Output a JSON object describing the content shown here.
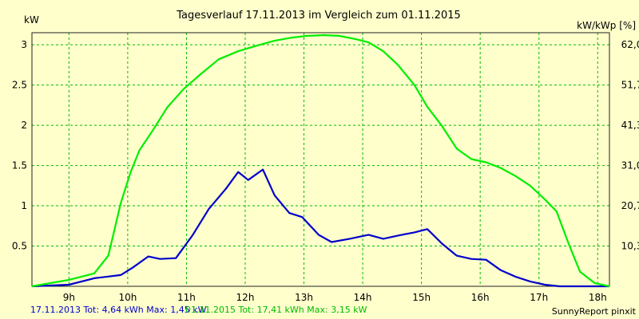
{
  "chart_data": {
    "type": "line",
    "title": "Tagesverlauf 17.11.2013 im Vergleich zum 01.11.2015",
    "ylabel_left": "kW",
    "ylabel_right": "kW/kWp [%]",
    "x_unit": "hour",
    "xlim": [
      8.37,
      18.2
    ],
    "ylim": [
      0,
      3.15
    ],
    "x_ticks": [
      9,
      10,
      11,
      12,
      13,
      14,
      15,
      16,
      17,
      18
    ],
    "x_tick_labels": [
      "9h",
      "10h",
      "11h",
      "12h",
      "13h",
      "14h",
      "15h",
      "16h",
      "17h",
      "18h"
    ],
    "y_ticks_left": [
      0.5,
      1,
      1.5,
      2,
      2.5,
      3
    ],
    "y_tick_labels_left": [
      "0.5",
      "1",
      "1.5",
      "2",
      "2.5",
      "3"
    ],
    "y_tick_labels_right": [
      "10,3",
      "20,7",
      "31,0",
      "41,3",
      "51,7",
      "62,0"
    ],
    "grid": true,
    "series": [
      {
        "name": "17.11.2013",
        "color": "#0000cc",
        "x": [
          8.37,
          9.0,
          9.43,
          9.88,
          10.08,
          10.35,
          10.55,
          10.82,
          11.1,
          11.38,
          11.67,
          11.88,
          12.05,
          12.3,
          12.5,
          12.75,
          12.97,
          13.25,
          13.47,
          13.78,
          14.1,
          14.35,
          14.6,
          14.88,
          15.1,
          15.35,
          15.6,
          15.85,
          16.1,
          16.35,
          16.6,
          16.85,
          17.1,
          17.35,
          17.6,
          18.2
        ],
        "y": [
          0.0,
          0.02,
          0.1,
          0.14,
          0.23,
          0.37,
          0.34,
          0.35,
          0.63,
          0.96,
          1.21,
          1.42,
          1.32,
          1.45,
          1.13,
          0.91,
          0.86,
          0.64,
          0.55,
          0.59,
          0.64,
          0.59,
          0.63,
          0.67,
          0.71,
          0.53,
          0.38,
          0.34,
          0.33,
          0.2,
          0.12,
          0.06,
          0.02,
          0.0,
          0.0,
          0.0
        ]
      },
      {
        "name": "01.11.2015",
        "color": "#00ee00",
        "x": [
          8.37,
          9.0,
          9.43,
          9.67,
          9.88,
          10.05,
          10.2,
          10.42,
          10.67,
          10.95,
          11.25,
          11.55,
          11.88,
          12.2,
          12.5,
          12.8,
          13.05,
          13.35,
          13.6,
          13.88,
          14.1,
          14.35,
          14.6,
          14.88,
          15.1,
          15.35,
          15.6,
          15.85,
          16.1,
          16.35,
          16.6,
          16.85,
          17.1,
          17.3,
          17.5,
          17.7,
          17.95,
          18.2
        ],
        "y": [
          0.0,
          0.08,
          0.16,
          0.38,
          1.03,
          1.42,
          1.69,
          1.93,
          2.22,
          2.45,
          2.64,
          2.82,
          2.92,
          2.99,
          3.05,
          3.09,
          3.11,
          3.12,
          3.11,
          3.07,
          3.03,
          2.92,
          2.75,
          2.5,
          2.23,
          1.99,
          1.71,
          1.58,
          1.54,
          1.47,
          1.37,
          1.25,
          1.08,
          0.93,
          0.54,
          0.18,
          0.04,
          0.0
        ]
      }
    ]
  },
  "footer": {
    "legend_2013": "17.11.2013 Tot: 4,64 kWh Max: 1,45 kW",
    "legend_2015": "01.11.2015 Tot: 17,41 kWh Max: 3,15 kW",
    "credit": "SunnyReport pinxit"
  }
}
